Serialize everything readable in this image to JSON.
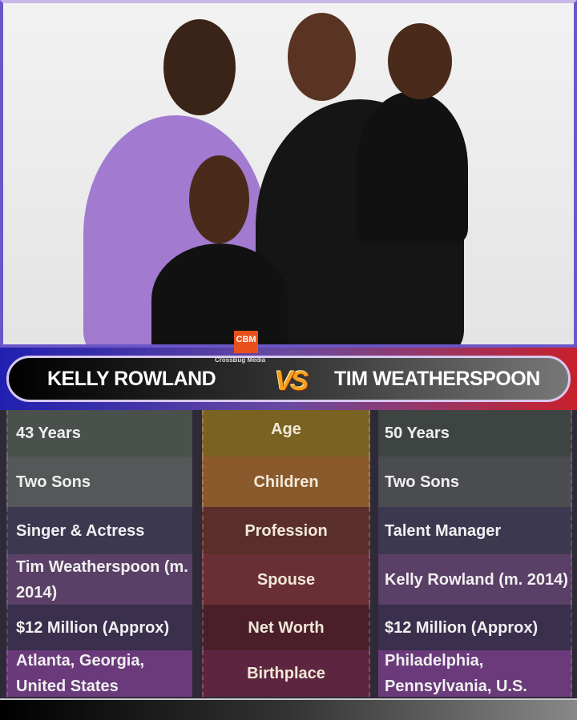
{
  "photo": {
    "logo_text": "CBM",
    "credit": "CrossBug Media"
  },
  "banner": {
    "left_name": "KELLY ROWLAND",
    "vs": "VS",
    "right_name": "TIM WEATHERSPOON"
  },
  "rows": [
    {
      "label": "Age",
      "left": "43 Years",
      "right": "50 Years"
    },
    {
      "label": "Children",
      "left": "Two Sons",
      "right": "Two Sons"
    },
    {
      "label": "Profession",
      "left": "Singer & Actress",
      "right": "Talent Manager"
    },
    {
      "label": "Spouse",
      "left": "Tim Weatherspoon (m. 2014)",
      "right": "Kelly Rowland (m. 2014)"
    },
    {
      "label": "Net Worth",
      "left": "$12 Million (Approx)",
      "right": "$12 Million (Approx)"
    },
    {
      "label": "Birthplace",
      "left": "Atlanta, Georgia, United States",
      "right": "Philadelphia, Pennsylvania, U.S."
    }
  ],
  "colors": {
    "banner_left": "#2020b0",
    "banner_right": "#c8202a",
    "vs": "#f5a020",
    "logo": "#e8501c"
  }
}
